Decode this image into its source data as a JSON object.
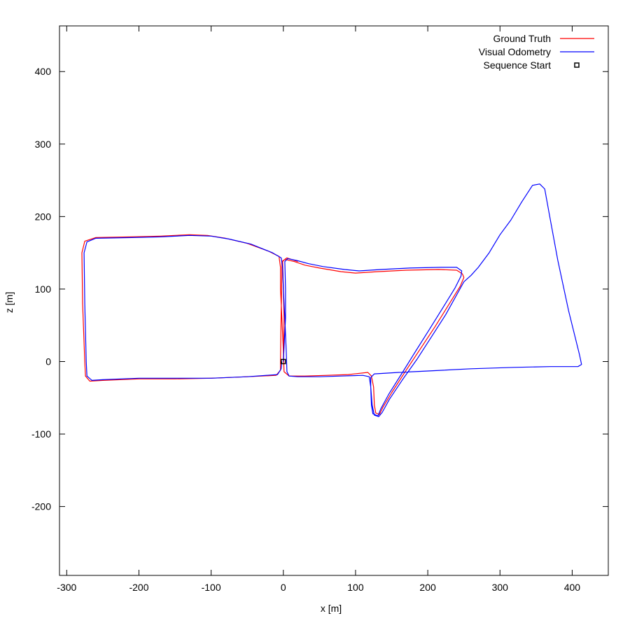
{
  "chart_data": {
    "type": "line",
    "xlabel": "x [m]",
    "ylabel": "z [m]",
    "xlim": [
      -310,
      450
    ],
    "ylim": [
      -295,
      463
    ],
    "x_ticks": [
      -300,
      -200,
      -100,
      0,
      100,
      200,
      300,
      400
    ],
    "y_ticks": [
      -200,
      -100,
      0,
      100,
      200,
      300,
      400
    ],
    "x_tick_labels": [
      "-300",
      "-200",
      "-100",
      "0",
      "100",
      "200",
      "300",
      "400"
    ],
    "y_tick_labels": [
      "-200",
      "-100",
      "0",
      "100",
      "200",
      "300",
      "400"
    ],
    "grid": false,
    "legend_position": "top-right",
    "series": [
      {
        "name": "Ground Truth",
        "color": "#ff0000",
        "points": [
          [
            0,
            0
          ],
          [
            1,
            60
          ],
          [
            0,
            100
          ],
          [
            -1,
            138
          ],
          [
            2,
            141
          ],
          [
            15,
            138
          ],
          [
            30,
            133
          ],
          [
            50,
            129
          ],
          [
            80,
            124
          ],
          [
            100,
            122
          ],
          [
            130,
            124
          ],
          [
            170,
            126
          ],
          [
            215,
            127
          ],
          [
            240,
            126
          ],
          [
            248,
            121
          ],
          [
            250,
            116
          ],
          [
            245,
            104
          ],
          [
            230,
            80
          ],
          [
            210,
            48
          ],
          [
            190,
            18
          ],
          [
            170,
            -12
          ],
          [
            150,
            -43
          ],
          [
            138,
            -63
          ],
          [
            133,
            -73
          ],
          [
            128,
            -71
          ],
          [
            126,
            -60
          ],
          [
            125,
            -35
          ],
          [
            122,
            -20
          ],
          [
            117,
            -15
          ],
          [
            90,
            -18
          ],
          [
            60,
            -19
          ],
          [
            30,
            -20
          ],
          [
            8,
            -20
          ],
          [
            1,
            -14
          ],
          [
            0,
            15
          ],
          [
            -2,
            60
          ],
          [
            -4,
            100
          ],
          [
            -4,
            130
          ],
          [
            -6,
            145
          ],
          [
            -20,
            152
          ],
          [
            -50,
            163
          ],
          [
            -80,
            170
          ],
          [
            -105,
            174
          ],
          [
            -130,
            175
          ],
          [
            -170,
            173
          ],
          [
            -210,
            172
          ],
          [
            -260,
            171
          ],
          [
            -275,
            166
          ],
          [
            -279,
            150
          ],
          [
            -278,
            80
          ],
          [
            -275,
            0
          ],
          [
            -274,
            -20
          ],
          [
            -268,
            -27
          ],
          [
            -250,
            -26
          ],
          [
            -200,
            -24
          ],
          [
            -150,
            -24
          ],
          [
            -100,
            -23
          ],
          [
            -50,
            -21
          ],
          [
            -10,
            -19
          ],
          [
            -4,
            -12
          ],
          [
            -4,
            0
          ],
          [
            -3,
            70
          ],
          [
            -2,
            120
          ],
          [
            -2,
            138
          ],
          [
            5,
            143
          ],
          [
            20,
            138
          ]
        ]
      },
      {
        "name": "Visual Odometry",
        "color": "#0000ff",
        "points": [
          [
            0,
            0
          ],
          [
            3,
            60
          ],
          [
            3,
            100
          ],
          [
            2,
            138
          ],
          [
            6,
            142
          ],
          [
            20,
            139
          ],
          [
            35,
            135
          ],
          [
            55,
            131
          ],
          [
            85,
            127
          ],
          [
            105,
            125
          ],
          [
            135,
            127
          ],
          [
            175,
            129
          ],
          [
            218,
            130
          ],
          [
            240,
            130
          ],
          [
            247,
            125
          ],
          [
            246,
            118
          ],
          [
            238,
            102
          ],
          [
            222,
            76
          ],
          [
            202,
            44
          ],
          [
            183,
            14
          ],
          [
            165,
            -15
          ],
          [
            146,
            -45
          ],
          [
            135,
            -65
          ],
          [
            131,
            -75
          ],
          [
            124,
            -72
          ],
          [
            122,
            -60
          ],
          [
            121,
            -35
          ],
          [
            121,
            -22
          ],
          [
            126,
            -17
          ],
          [
            160,
            -15
          ],
          [
            200,
            -13
          ],
          [
            260,
            -10
          ],
          [
            320,
            -8
          ],
          [
            370,
            -7
          ],
          [
            408,
            -7
          ],
          [
            413,
            -4
          ],
          [
            410,
            10
          ],
          [
            395,
            70
          ],
          [
            380,
            140
          ],
          [
            368,
            205
          ],
          [
            362,
            238
          ],
          [
            355,
            245
          ],
          [
            345,
            243
          ],
          [
            330,
            220
          ],
          [
            315,
            195
          ],
          [
            300,
            175
          ],
          [
            285,
            150
          ],
          [
            270,
            130
          ],
          [
            260,
            119
          ],
          [
            250,
            110
          ],
          [
            240,
            92
          ],
          [
            225,
            65
          ],
          [
            205,
            34
          ],
          [
            185,
            3
          ],
          [
            165,
            -25
          ],
          [
            147,
            -52
          ],
          [
            137,
            -70
          ],
          [
            132,
            -76
          ],
          [
            126,
            -74
          ],
          [
            123,
            -60
          ],
          [
            121,
            -35
          ],
          [
            119,
            -21
          ],
          [
            110,
            -19
          ],
          [
            80,
            -20
          ],
          [
            50,
            -21
          ],
          [
            20,
            -21
          ],
          [
            8,
            -20
          ],
          [
            5,
            -14
          ],
          [
            4,
            15
          ],
          [
            2,
            60
          ],
          [
            0,
            100
          ],
          [
            -1,
            130
          ],
          [
            -3,
            143
          ],
          [
            -15,
            150
          ],
          [
            -45,
            162
          ],
          [
            -75,
            169
          ],
          [
            -100,
            173
          ],
          [
            -130,
            174
          ],
          [
            -170,
            172
          ],
          [
            -210,
            171
          ],
          [
            -260,
            170
          ],
          [
            -272,
            165
          ],
          [
            -276,
            150
          ],
          [
            -275,
            80
          ],
          [
            -273,
            0
          ],
          [
            -272,
            -20
          ],
          [
            -265,
            -26
          ],
          [
            -250,
            -25
          ],
          [
            -200,
            -23
          ],
          [
            -150,
            -23
          ],
          [
            -100,
            -23
          ],
          [
            -50,
            -21
          ],
          [
            -8,
            -18
          ],
          [
            -3,
            -10
          ],
          [
            -2,
            0
          ]
        ]
      },
      {
        "name": "Sequence Start",
        "color": "#000000",
        "marker": "square",
        "points": [
          [
            0,
            0
          ]
        ]
      }
    ]
  }
}
